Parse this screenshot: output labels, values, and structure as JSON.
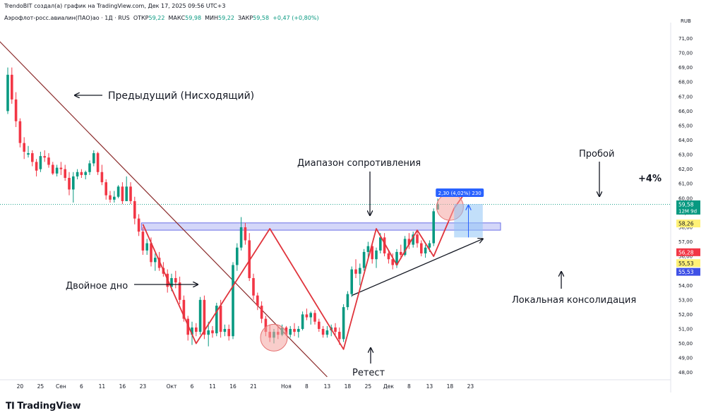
{
  "header": {
    "credit": "TrendoBIT создал(а) график на TradingView.com, Дек 17, 2025 09:56 UTC+3",
    "symbol": "Аэрофлот-росс.авиалин(ПАО)ао · 1Д · RUS",
    "ohlc": [
      {
        "label": "ОТКР",
        "value": "59,22"
      },
      {
        "label": "МАКС",
        "value": "59,98"
      },
      {
        "label": "МИН",
        "value": "59,22"
      },
      {
        "label": "ЗАКР",
        "value": "59,58"
      }
    ],
    "change": "+0,47 (+0,80%)"
  },
  "currency": "RUB",
  "brand": "TradingView",
  "colors": {
    "up": "#089981",
    "down": "#f23645",
    "pattern": "#e0343c",
    "resistance_fill": "#c5c9f7",
    "resistance_stroke": "#6a6fe6",
    "measure": "#2962ff",
    "arrow": "#131722"
  },
  "chart_data": {
    "type": "candlestick",
    "ylim": [
      47.5,
      71.8
    ],
    "y_ticks": [
      "48,00",
      "49,00",
      "50,00",
      "51,00",
      "52,00",
      "53,00",
      "54,00",
      "55,00",
      "56,00",
      "57,00",
      "58,00",
      "59,00",
      "60,00",
      "61,00",
      "62,00",
      "63,00",
      "64,00",
      "65,00",
      "66,00",
      "67,00",
      "68,00",
      "69,00",
      "70,00",
      "71,00"
    ],
    "x_ticks": [
      {
        "label": "20",
        "i": 3
      },
      {
        "label": "25",
        "i": 8
      },
      {
        "label": "Сен",
        "i": 13
      },
      {
        "label": "6",
        "i": 18
      },
      {
        "label": "11",
        "i": 23
      },
      {
        "label": "16",
        "i": 28
      },
      {
        "label": "23",
        "i": 33
      },
      {
        "label": "Окт",
        "i": 40
      },
      {
        "label": "6",
        "i": 45
      },
      {
        "label": "11",
        "i": 50
      },
      {
        "label": "16",
        "i": 55
      },
      {
        "label": "21",
        "i": 60
      },
      {
        "label": "Ноя",
        "i": 68
      },
      {
        "label": "8",
        "i": 73
      },
      {
        "label": "13",
        "i": 78
      },
      {
        "label": "18",
        "i": 83
      },
      {
        "label": "25",
        "i": 88
      },
      {
        "label": "Дек",
        "i": 93
      },
      {
        "label": "8",
        "i": 98
      },
      {
        "label": "13",
        "i": 103
      },
      {
        "label": "18",
        "i": 108
      },
      {
        "label": "23",
        "i": 113
      }
    ],
    "ohlc": [
      [
        66.0,
        69.0,
        65.8,
        68.5
      ],
      [
        68.5,
        69.0,
        66.5,
        66.8
      ],
      [
        66.8,
        67.3,
        64.9,
        65.3
      ],
      [
        65.3,
        65.5,
        63.5,
        63.8
      ],
      [
        63.8,
        64.2,
        62.7,
        63.2
      ],
      [
        63.0,
        63.6,
        62.8,
        63.1
      ],
      [
        63.1,
        63.3,
        62.2,
        62.5
      ],
      [
        62.5,
        62.7,
        61.5,
        61.9
      ],
      [
        62.0,
        63.2,
        61.8,
        62.9
      ],
      [
        62.9,
        63.3,
        62.5,
        62.8
      ],
      [
        62.8,
        63.1,
        62.1,
        62.3
      ],
      [
        62.3,
        62.5,
        61.6,
        61.7
      ],
      [
        61.7,
        62.3,
        61.5,
        62.1
      ],
      [
        62.1,
        62.5,
        61.6,
        62.0
      ],
      [
        62.0,
        62.3,
        61.2,
        61.4
      ],
      [
        61.4,
        61.8,
        60.2,
        60.6
      ],
      [
        60.6,
        61.8,
        59.7,
        61.5
      ],
      [
        61.5,
        62.0,
        61.3,
        61.8
      ],
      [
        61.8,
        62.0,
        61.4,
        61.6
      ],
      [
        61.6,
        61.9,
        61.3,
        61.8
      ],
      [
        61.8,
        62.6,
        61.6,
        62.4
      ],
      [
        62.4,
        63.3,
        62.2,
        63.1
      ],
      [
        63.1,
        63.2,
        61.6,
        61.8
      ],
      [
        61.8,
        62.3,
        60.9,
        61.1
      ],
      [
        61.1,
        61.3,
        59.9,
        60.2
      ],
      [
        60.2,
        60.5,
        59.7,
        59.9
      ],
      [
        59.9,
        60.5,
        59.7,
        60.1
      ],
      [
        60.1,
        60.9,
        60.0,
        60.8
      ],
      [
        60.8,
        61.1,
        59.6,
        59.8
      ],
      [
        59.8,
        61.5,
        59.8,
        60.8
      ],
      [
        60.8,
        61.1,
        59.6,
        59.8
      ],
      [
        59.8,
        60.1,
        58.2,
        58.6
      ],
      [
        58.6,
        58.9,
        57.4,
        57.7
      ],
      [
        57.7,
        58.0,
        56.1,
        56.4
      ],
      [
        56.4,
        57.2,
        56.1,
        56.9
      ],
      [
        56.9,
        57.3,
        55.3,
        55.6
      ],
      [
        55.6,
        56.2,
        55.0,
        55.9
      ],
      [
        55.9,
        56.3,
        55.0,
        55.2
      ],
      [
        55.2,
        55.6,
        54.6,
        54.8
      ],
      [
        54.8,
        55.1,
        53.5,
        53.9
      ],
      [
        53.9,
        54.8,
        53.6,
        54.5
      ],
      [
        54.5,
        55.0,
        53.8,
        54.2
      ],
      [
        54.2,
        54.6,
        52.7,
        53.0
      ],
      [
        53.0,
        53.3,
        51.5,
        51.7
      ],
      [
        51.7,
        51.9,
        50.2,
        50.6
      ],
      [
        50.6,
        51.5,
        49.9,
        51.1
      ],
      [
        51.1,
        51.4,
        50.5,
        50.8
      ],
      [
        50.8,
        53.2,
        50.6,
        53.0
      ],
      [
        53.0,
        53.3,
        50.3,
        50.6
      ],
      [
        50.6,
        51.5,
        49.8,
        50.9
      ],
      [
        50.9,
        51.2,
        50.4,
        50.7
      ],
      [
        50.7,
        52.8,
        50.5,
        52.6
      ],
      [
        52.6,
        53.0,
        50.4,
        50.8
      ],
      [
        50.8,
        51.3,
        50.5,
        51.0
      ],
      [
        51.0,
        51.3,
        50.2,
        50.5
      ],
      [
        50.5,
        55.6,
        50.3,
        55.4
      ],
      [
        55.4,
        56.9,
        55.0,
        56.6
      ],
      [
        56.6,
        58.7,
        56.4,
        58.0
      ],
      [
        58.0,
        58.3,
        56.8,
        57.1
      ],
      [
        57.1,
        57.6,
        54.3,
        54.5
      ],
      [
        54.5,
        54.8,
        53.0,
        53.3
      ],
      [
        53.3,
        53.5,
        52.3,
        52.6
      ],
      [
        52.6,
        52.9,
        51.4,
        51.7
      ],
      [
        51.7,
        51.9,
        50.5,
        50.8
      ],
      [
        50.8,
        51.3,
        50.1,
        50.4
      ],
      [
        50.4,
        51.0,
        50.0,
        50.8
      ],
      [
        50.8,
        51.2,
        50.3,
        50.6
      ],
      [
        50.6,
        51.3,
        50.5,
        51.1
      ],
      [
        51.1,
        51.2,
        50.5,
        50.6
      ],
      [
        50.6,
        51.2,
        50.4,
        51.0
      ],
      [
        51.0,
        51.4,
        50.5,
        50.8
      ],
      [
        50.8,
        51.2,
        50.4,
        51.0
      ],
      [
        51.0,
        52.2,
        50.9,
        52.0
      ],
      [
        52.0,
        52.4,
        51.6,
        51.8
      ],
      [
        51.8,
        52.2,
        51.3,
        52.1
      ],
      [
        52.1,
        52.3,
        51.3,
        51.5
      ],
      [
        51.5,
        51.7,
        50.8,
        51.0
      ],
      [
        51.0,
        51.2,
        50.4,
        50.6
      ],
      [
        50.6,
        51.2,
        50.4,
        50.9
      ],
      [
        50.9,
        51.3,
        50.5,
        51.1
      ],
      [
        51.1,
        51.4,
        50.6,
        50.8
      ],
      [
        50.8,
        51.1,
        49.9,
        50.3
      ],
      [
        50.3,
        52.7,
        50.1,
        52.5
      ],
      [
        52.5,
        53.6,
        52.3,
        53.4
      ],
      [
        53.4,
        55.3,
        53.2,
        55.1
      ],
      [
        55.1,
        55.8,
        54.5,
        54.8
      ],
      [
        54.8,
        55.5,
        54.0,
        55.2
      ],
      [
        55.2,
        56.5,
        55.0,
        56.3
      ],
      [
        56.3,
        57.0,
        55.8,
        56.7
      ],
      [
        56.7,
        56.9,
        55.5,
        55.8
      ],
      [
        55.8,
        56.6,
        55.2,
        56.4
      ],
      [
        56.4,
        57.6,
        56.2,
        57.3
      ],
      [
        57.3,
        57.6,
        56.0,
        56.2
      ],
      [
        56.2,
        56.4,
        55.5,
        55.8
      ],
      [
        55.8,
        56.2,
        55.1,
        55.4
      ],
      [
        55.4,
        56.5,
        55.2,
        56.3
      ],
      [
        56.3,
        56.8,
        55.8,
        56.1
      ],
      [
        56.1,
        57.4,
        56.0,
        57.2
      ],
      [
        57.2,
        57.6,
        56.5,
        56.8
      ],
      [
        56.8,
        57.7,
        56.6,
        57.5
      ],
      [
        57.5,
        57.8,
        56.6,
        56.9
      ],
      [
        56.9,
        57.1,
        56.0,
        56.2
      ],
      [
        56.2,
        56.8,
        55.9,
        56.6
      ],
      [
        56.6,
        57.1,
        56.3,
        56.9
      ],
      [
        56.9,
        59.3,
        56.7,
        59.1
      ],
      [
        59.22,
        59.98,
        59.22,
        59.58
      ]
    ],
    "price_labels": [
      {
        "value": "59,58",
        "sub": "12М 9d",
        "y": 59.58,
        "bg": "#089981",
        "fg": "#ffffff"
      },
      {
        "value": "58,26",
        "y": 58.26,
        "bg": "#fff176",
        "fg": "#131722"
      },
      {
        "value": "56,28",
        "y": 56.28,
        "bg": "#f23645",
        "fg": "#ffffff"
      },
      {
        "value": "55,53",
        "y": 55.53,
        "bg": "#fff176",
        "fg": "#131722"
      },
      {
        "value": "55,53",
        "y": 54.93,
        "bg": "#3f51e6",
        "fg": "#ffffff"
      }
    ],
    "resistance_zone": {
      "y_low": 57.8,
      "y_high": 58.3,
      "i_start": 33,
      "i_end": 120
    },
    "trendline": {
      "i1": -2,
      "y1": 70.8,
      "i2": 78,
      "y2": 47.7
    },
    "consolidation_support": {
      "i1": 84,
      "y1": 53.3,
      "i2": 116,
      "y2": 57.2
    },
    "pattern_path": [
      [
        33,
        58.2
      ],
      [
        46,
        50.0
      ],
      [
        64,
        57.9
      ],
      [
        82,
        49.6
      ],
      [
        90,
        57.9
      ],
      [
        95,
        55.4
      ],
      [
        100,
        57.8
      ],
      [
        104,
        56.0
      ],
      [
        109,
        59.3
      ],
      [
        112,
        60.5
      ]
    ],
    "measurement": {
      "label": "2,30 (4,02%) 230",
      "y_low": 57.3,
      "y_high": 59.6,
      "i_start": 109,
      "i_end": 116
    },
    "highlights": [
      {
        "i": 65,
        "y": 50.4
      },
      {
        "i": 108,
        "y": 59.4
      }
    ],
    "annotations": {
      "prev_trend": "Предыдущий (Нисходящий)",
      "resistance": "Диапазон сопротивления",
      "breakout": "Пробой",
      "gain": "+4%",
      "double_bottom": "Двойное дно",
      "local_consolidation": "Локальная консолидация",
      "retest": "Ретест"
    }
  }
}
